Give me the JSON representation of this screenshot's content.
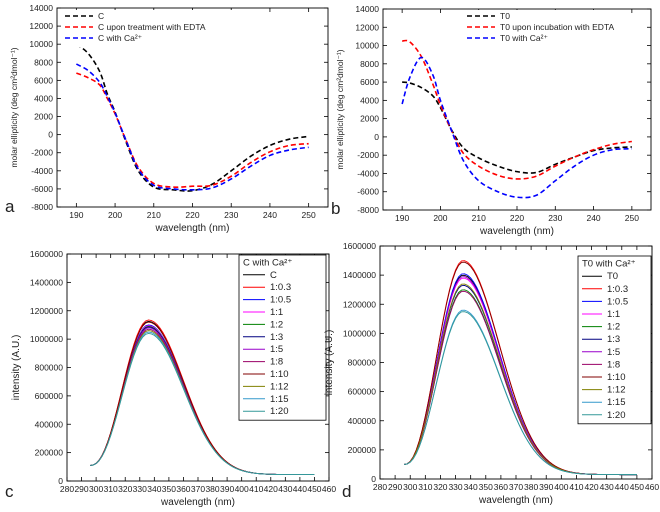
{
  "chart_data": [
    {
      "panel": "a",
      "type": "line",
      "title": "",
      "xlabel": "wavelength (nm)",
      "ylabel": "molar ellipticity (deg cm²dmol⁻¹)",
      "xlim": [
        185,
        255
      ],
      "ylim": [
        -8000,
        14000
      ],
      "xticks": [
        190,
        200,
        210,
        220,
        230,
        240,
        250
      ],
      "yticks": [
        -8000,
        -6000,
        -4000,
        -2000,
        0,
        2000,
        4000,
        6000,
        8000,
        10000,
        12000,
        14000
      ],
      "legend_position": "top-left",
      "series": [
        {
          "name": "C",
          "color": "#000000",
          "dash": true,
          "x": [
            190,
            193,
            196,
            198,
            200,
            203,
            206,
            210,
            215,
            220,
            225,
            230,
            235,
            240,
            245,
            250
          ],
          "y": [
            10000,
            9000,
            7000,
            4500,
            2500,
            -1000,
            -4000,
            -5800,
            -6100,
            -6200,
            -5500,
            -4000,
            -2400,
            -1200,
            -500,
            -200
          ]
        },
        {
          "name": "C upon treatment with EDTA",
          "color": "#ff0000",
          "dash": true,
          "x": [
            190,
            193,
            196,
            198,
            200,
            203,
            206,
            210,
            215,
            220,
            225,
            230,
            235,
            240,
            245,
            250
          ],
          "y": [
            6800,
            6300,
            5500,
            4000,
            2300,
            -800,
            -3600,
            -5400,
            -5800,
            -5700,
            -5600,
            -4600,
            -3100,
            -1900,
            -1200,
            -1000
          ]
        },
        {
          "name": "C with Ca²⁺",
          "color": "#0000ff",
          "dash": true,
          "x": [
            190,
            193,
            196,
            198,
            200,
            203,
            206,
            210,
            215,
            220,
            225,
            230,
            235,
            240,
            245,
            250
          ],
          "y": [
            7800,
            7100,
            5800,
            4200,
            2400,
            -800,
            -3800,
            -5600,
            -6000,
            -6100,
            -5900,
            -4900,
            -3500,
            -2300,
            -1700,
            -1400
          ]
        }
      ]
    },
    {
      "panel": "b",
      "type": "line",
      "title": "",
      "xlabel": "wavelength (nm)",
      "ylabel": "molar ellipticity (deg cm²dmol⁻¹)",
      "xlim": [
        185,
        255
      ],
      "ylim": [
        -8000,
        14000
      ],
      "xticks": [
        190,
        200,
        210,
        220,
        230,
        240,
        250
      ],
      "yticks": [
        -8000,
        -6000,
        -4000,
        -2000,
        0,
        2000,
        4000,
        6000,
        8000,
        10000,
        12000,
        14000
      ],
      "legend_position": "top-right",
      "series": [
        {
          "name": "T0",
          "color": "#000000",
          "dash": true,
          "x": [
            190,
            192,
            195,
            198,
            200,
            203,
            206,
            210,
            215,
            220,
            225,
            230,
            235,
            240,
            245,
            250
          ],
          "y": [
            6000,
            5900,
            5400,
            4500,
            3200,
            700,
            -1200,
            -2300,
            -3200,
            -3800,
            -3900,
            -3000,
            -2200,
            -1500,
            -1200,
            -1100
          ]
        },
        {
          "name": "T0 upon incubation with EDTA",
          "color": "#ff0000",
          "dash": true,
          "x": [
            190,
            192,
            195,
            198,
            200,
            203,
            206,
            210,
            215,
            220,
            225,
            230,
            235,
            240,
            245,
            250
          ],
          "y": [
            10500,
            10400,
            8800,
            5800,
            3500,
            600,
            -1800,
            -3200,
            -4200,
            -4600,
            -4300,
            -3200,
            -2200,
            -1400,
            -800,
            -500
          ]
        },
        {
          "name": "T0 with Ca²⁺",
          "color": "#0000ff",
          "dash": true,
          "x": [
            190,
            192,
            195,
            198,
            200,
            203,
            206,
            210,
            215,
            220,
            225,
            230,
            235,
            240,
            245,
            250
          ],
          "y": [
            3600,
            6500,
            8700,
            6800,
            4000,
            600,
            -2600,
            -4800,
            -6000,
            -6600,
            -6400,
            -4800,
            -3200,
            -2000,
            -1400,
            -1300
          ]
        }
      ]
    },
    {
      "panel": "c",
      "type": "line",
      "title": "",
      "xlabel": "wavelength (nm)",
      "ylabel": "intensity (A.U.)",
      "xlim": [
        280,
        460
      ],
      "ylim": [
        0,
        1600000
      ],
      "xticks": [
        280,
        290,
        300,
        310,
        320,
        330,
        340,
        350,
        360,
        370,
        380,
        390,
        400,
        410,
        420,
        430,
        440,
        450,
        460
      ],
      "yticks": [
        0,
        200000,
        400000,
        600000,
        800000,
        1000000,
        1200000,
        1400000,
        1600000
      ],
      "legend_title": "C with Ca²⁺",
      "legend_position": "top-right",
      "peak_x": 336,
      "start_x": 296,
      "end_x": 450,
      "start_y": 110000,
      "end_y": 45000,
      "series": [
        {
          "name": "C",
          "color": "#000000",
          "peak": 1125000
        },
        {
          "name": "1:0.3",
          "color": "#ff0000",
          "peak": 1135000
        },
        {
          "name": "1:0.5",
          "color": "#0000ff",
          "peak": 1100000
        },
        {
          "name": "1:1",
          "color": "#ff00ff",
          "peak": 1095000
        },
        {
          "name": "1:2",
          "color": "#008000",
          "peak": 1090000
        },
        {
          "name": "1:3",
          "color": "#000080",
          "peak": 1085000
        },
        {
          "name": "1:5",
          "color": "#9900cc",
          "peak": 1080000
        },
        {
          "name": "1:8",
          "color": "#990066",
          "peak": 1070000
        },
        {
          "name": "1:10",
          "color": "#800000",
          "peak": 1120000
        },
        {
          "name": "1:12",
          "color": "#808000",
          "peak": 1060000
        },
        {
          "name": "1:15",
          "color": "#3399cc",
          "peak": 1050000
        },
        {
          "name": "1:20",
          "color": "#339999",
          "peak": 1040000
        }
      ]
    },
    {
      "panel": "d",
      "type": "line",
      "title": "",
      "xlabel": "wavelength (nm)",
      "ylabel": "intensity (A.U.)",
      "xlim": [
        280,
        460
      ],
      "ylim": [
        0,
        1600000
      ],
      "xticks": [
        280,
        290,
        300,
        310,
        320,
        330,
        340,
        350,
        360,
        370,
        380,
        390,
        400,
        410,
        420,
        430,
        440,
        450,
        460
      ],
      "yticks": [
        0,
        200000,
        400000,
        600000,
        800000,
        1000000,
        1200000,
        1400000,
        1600000
      ],
      "legend_title": "T0 with Ca²⁺",
      "legend_position": "top-right",
      "peak_x": 335,
      "start_x": 296,
      "end_x": 450,
      "start_y": 100000,
      "end_y": 30000,
      "series": [
        {
          "name": "T0",
          "color": "#000000",
          "peak": 1400000
        },
        {
          "name": "1:0.3",
          "color": "#ff0000",
          "peak": 1500000
        },
        {
          "name": "1:0.5",
          "color": "#0000ff",
          "peak": 1410000
        },
        {
          "name": "1:1",
          "color": "#ff00ff",
          "peak": 1380000
        },
        {
          "name": "1:2",
          "color": "#008000",
          "peak": 1300000
        },
        {
          "name": "1:3",
          "color": "#000080",
          "peak": 1330000
        },
        {
          "name": "1:5",
          "color": "#9900cc",
          "peak": 1390000
        },
        {
          "name": "1:8",
          "color": "#990066",
          "peak": 1290000
        },
        {
          "name": "1:10",
          "color": "#800000",
          "peak": 1490000
        },
        {
          "name": "1:12",
          "color": "#808000",
          "peak": 1340000
        },
        {
          "name": "1:15",
          "color": "#3399cc",
          "peak": 1160000
        },
        {
          "name": "1:20",
          "color": "#339999",
          "peak": 1150000
        }
      ]
    }
  ],
  "panel_labels": [
    "a",
    "b",
    "c",
    "d"
  ]
}
